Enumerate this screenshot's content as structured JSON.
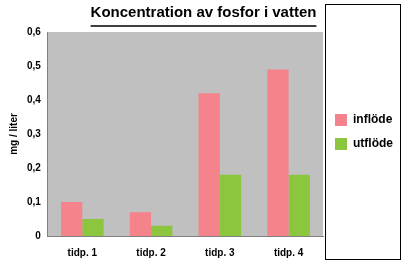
{
  "chart_data": {
    "type": "bar",
    "title": "Koncentration av fosfor i vatten",
    "y_label": "mg / liter",
    "categories": [
      "tidp. 1",
      "tidp. 2",
      "tidp. 3",
      "tidp. 4"
    ],
    "series": [
      {
        "name": "inflöde",
        "color": "#f4838c",
        "values": [
          0.1,
          0.07,
          0.42,
          0.49
        ]
      },
      {
        "name": "utflöde",
        "color": "#8cc63e",
        "values": [
          0.05,
          0.03,
          0.18,
          0.18
        ]
      }
    ],
    "ylim": [
      0,
      0.6
    ],
    "yticks": [
      0,
      {
        "value": 0.1,
        "label": "0,1"
      },
      {
        "value": 0.2,
        "label": "0,2"
      },
      {
        "value": 0.3,
        "label": "0,3"
      },
      {
        "value": 0.4,
        "label": "0,4"
      },
      {
        "value": 0.5,
        "label": "0,5"
      },
      {
        "value": 0.6,
        "label": "0,6"
      }
    ],
    "grid": false,
    "legend": "right"
  }
}
